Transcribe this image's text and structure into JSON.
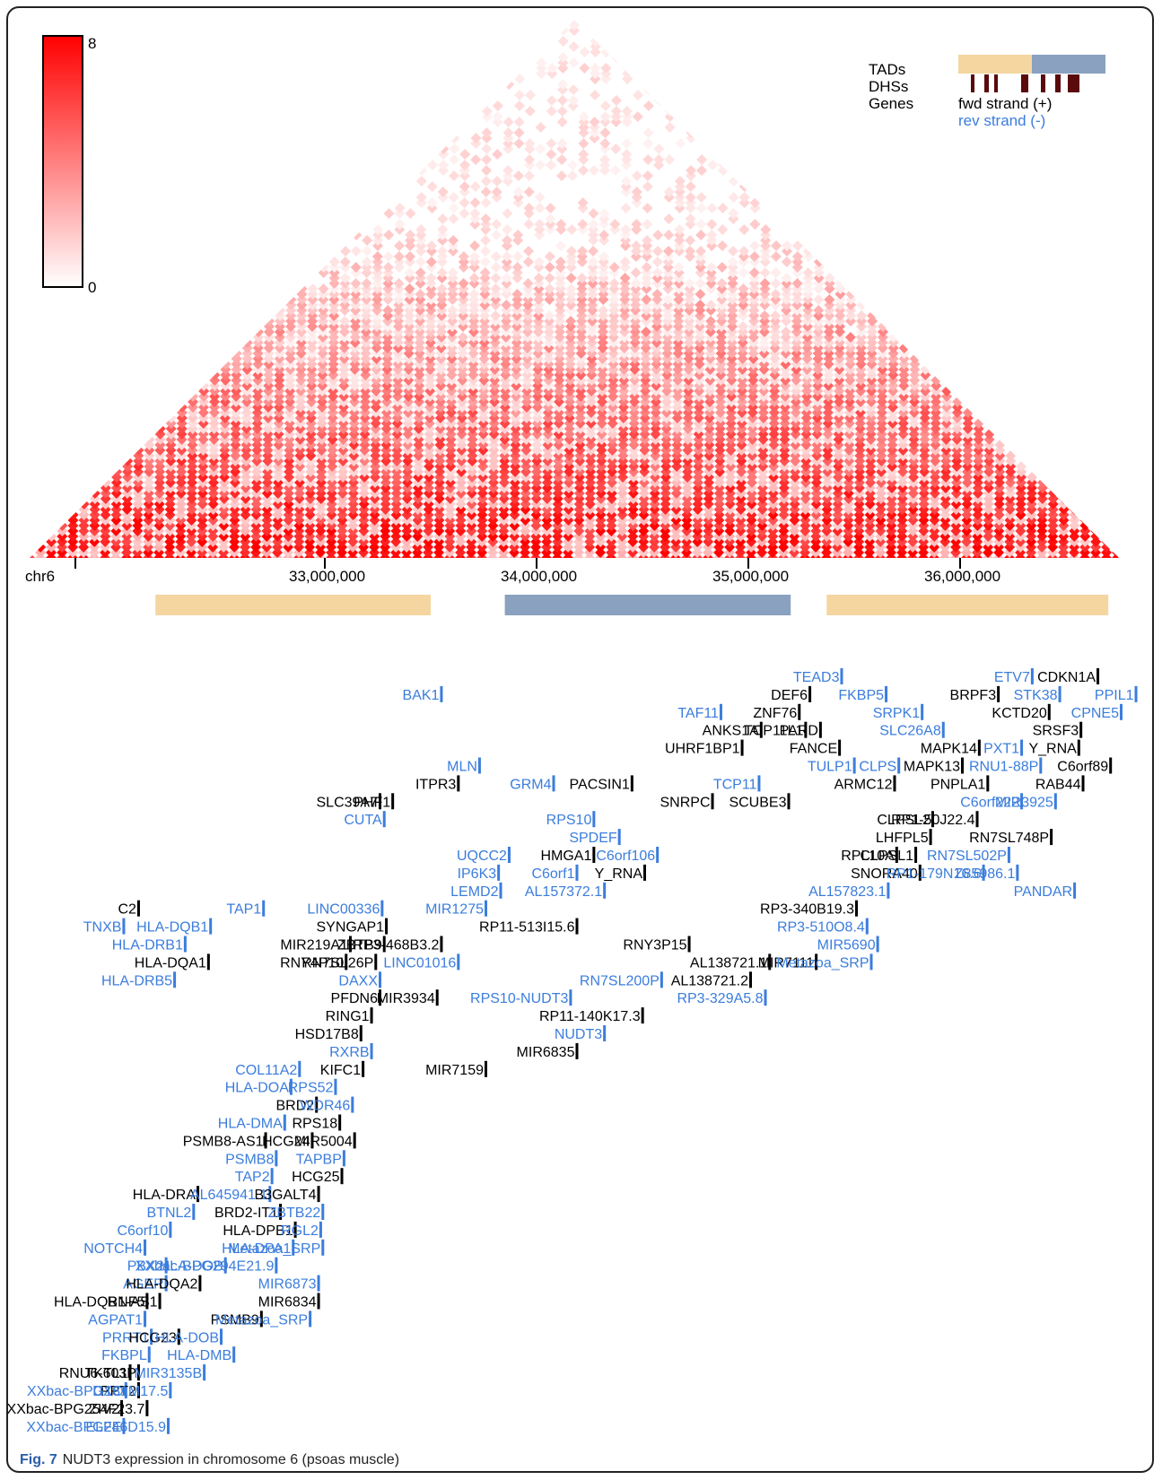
{
  "figure": {
    "label": "Fig. 7",
    "text": "NUDT3 expression in chromosome 6 (psoas muscle)"
  },
  "colors": {
    "heat_max": "#ff0000",
    "heat_min": "#ffffff",
    "tad_a": "#f5d6a0",
    "tad_b": "#8aa1bf",
    "dhs": "#5a0a0a",
    "fwd_gene": "#000000",
    "rev_gene": "#3b7ddd"
  },
  "legend": {
    "tads": "TADs",
    "dhss": "DHSs",
    "genes": "Genes",
    "fwd": "fwd strand (+)",
    "rev": "rev strand (-)"
  },
  "chart_data": {
    "type": "heatmap",
    "title": "",
    "chromosome": "chr6",
    "colorbar": {
      "min": 0,
      "max": 8
    },
    "x_range": [
      32200000,
      36700000
    ],
    "x_ticks": [
      {
        "value": 33000000,
        "label": "33,000,000"
      },
      {
        "value": 34000000,
        "label": "34,000,000"
      },
      {
        "value": 35000000,
        "label": "35,000,000"
      },
      {
        "value": 36000000,
        "label": "36,000,000"
      }
    ],
    "tads": [
      {
        "start": 32200000,
        "end": 33500000,
        "type": "a"
      },
      {
        "start": 33850000,
        "end": 35200000,
        "type": "b"
      },
      {
        "start": 35370000,
        "end": 36700000,
        "type": "a"
      }
    ],
    "genes": [
      {
        "name": "TEAD3",
        "strand": "-",
        "row": 0,
        "x": 35430000
      },
      {
        "name": "ETV7",
        "strand": "-",
        "row": 0,
        "x": 36330000
      },
      {
        "name": "CDKN1A",
        "strand": "+",
        "row": 0,
        "x": 36640000
      },
      {
        "name": "BAK1",
        "strand": "-",
        "row": 1,
        "x": 33540000
      },
      {
        "name": "DEF6",
        "strand": "+",
        "row": 1,
        "x": 35280000
      },
      {
        "name": "FKBP5",
        "strand": "-",
        "row": 1,
        "x": 35640000
      },
      {
        "name": "BRPF3",
        "strand": "+",
        "row": 1,
        "x": 36170000
      },
      {
        "name": "STK38",
        "strand": "-",
        "row": 1,
        "x": 36460000
      },
      {
        "name": "PPIL1",
        "strand": "-",
        "row": 1,
        "x": 36820000
      },
      {
        "name": "TAF11",
        "strand": "-",
        "row": 2,
        "x": 34860000
      },
      {
        "name": "ZNF76",
        "strand": "+",
        "row": 2,
        "x": 35230000
      },
      {
        "name": "SRPK1",
        "strand": "-",
        "row": 2,
        "x": 35810000
      },
      {
        "name": "KCTD20",
        "strand": "+",
        "row": 2,
        "x": 36410000
      },
      {
        "name": "CPNE5",
        "strand": "-",
        "row": 2,
        "x": 36750000
      },
      {
        "name": "ANKS1A",
        "strand": "+",
        "row": 3,
        "x": 35050000
      },
      {
        "name": "TCP11L1",
        "strand": "+",
        "row": 3,
        "x": 35260000
      },
      {
        "name": "PARD",
        "strand": "+",
        "row": 3,
        "x": 35330000
      },
      {
        "name": "SLC26A8",
        "strand": "-",
        "row": 3,
        "x": 35910000
      },
      {
        "name": "SRSF3",
        "strand": "+",
        "row": 3,
        "x": 36560000
      },
      {
        "name": "UHRF1BP1",
        "strand": "+",
        "row": 4,
        "x": 34960000
      },
      {
        "name": "FANCE",
        "strand": "+",
        "row": 4,
        "x": 35420000
      },
      {
        "name": "MAPK14",
        "strand": "+",
        "row": 4,
        "x": 36080000
      },
      {
        "name": "PXT1",
        "strand": "-",
        "row": 4,
        "x": 36280000
      },
      {
        "name": "Y_RNA",
        "strand": "+",
        "row": 4,
        "x": 36550000
      },
      {
        "name": "MLN",
        "strand": "-",
        "row": 5,
        "x": 33720000
      },
      {
        "name": "TULP1",
        "strand": "-",
        "row": 5,
        "x": 35490000
      },
      {
        "name": "CLPS",
        "strand": "-",
        "row": 5,
        "x": 35700000
      },
      {
        "name": "MAPK13",
        "strand": "+",
        "row": 5,
        "x": 36000000
      },
      {
        "name": "RNU1-88P",
        "strand": "-",
        "row": 5,
        "x": 36370000
      },
      {
        "name": "C6orf89",
        "strand": "+",
        "row": 5,
        "x": 36700000
      },
      {
        "name": "ITPR3",
        "strand": "+",
        "row": 6,
        "x": 33620000
      },
      {
        "name": "GRM4",
        "strand": "-",
        "row": 6,
        "x": 34070000
      },
      {
        "name": "PACSIN1",
        "strand": "+",
        "row": 6,
        "x": 34440000
      },
      {
        "name": "TCP11",
        "strand": "-",
        "row": 6,
        "x": 35040000
      },
      {
        "name": "ARMC12",
        "strand": "+",
        "row": 6,
        "x": 35680000
      },
      {
        "name": "PNPLA1",
        "strand": "+",
        "row": 6,
        "x": 36120000
      },
      {
        "name": "RAB44",
        "strand": "+",
        "row": 6,
        "x": 36570000
      },
      {
        "name": "SLC39A7",
        "strand": "+",
        "row": 7,
        "x": 33250000
      },
      {
        "name": "PHF1",
        "strand": "+",
        "row": 7,
        "x": 33310000
      },
      {
        "name": "SNRPC",
        "strand": "+",
        "row": 7,
        "x": 34820000
      },
      {
        "name": "SCUBE3",
        "strand": "+",
        "row": 7,
        "x": 35180000
      },
      {
        "name": "C6orf222",
        "strand": "-",
        "row": 7,
        "x": 36280000
      },
      {
        "name": "MIR3925",
        "strand": "-",
        "row": 7,
        "x": 36440000
      },
      {
        "name": "CUTA",
        "strand": "-",
        "row": 8,
        "x": 33270000
      },
      {
        "name": "RPS10",
        "strand": "-",
        "row": 8,
        "x": 34260000
      },
      {
        "name": "CLPSL2",
        "strand": "+",
        "row": 8,
        "x": 35860000
      },
      {
        "name": "RP1-50J22.4",
        "strand": "+",
        "row": 8,
        "x": 36070000
      },
      {
        "name": "SPDEF",
        "strand": "-",
        "row": 9,
        "x": 34380000
      },
      {
        "name": "LHFPL5",
        "strand": "+",
        "row": 9,
        "x": 35850000
      },
      {
        "name": "RN7SL748P",
        "strand": "+",
        "row": 9,
        "x": 36420000
      },
      {
        "name": "UQCC2",
        "strand": "-",
        "row": 10,
        "x": 33860000
      },
      {
        "name": "HMGA1",
        "strand": "+",
        "row": 10,
        "x": 34260000
      },
      {
        "name": "C6orf106",
        "strand": "-",
        "row": 10,
        "x": 34560000
      },
      {
        "name": "RPL10A",
        "strand": "+",
        "row": 10,
        "x": 35690000
      },
      {
        "name": "CLPSL1",
        "strand": "+",
        "row": 10,
        "x": 35780000
      },
      {
        "name": "RN7SL502P",
        "strand": "-",
        "row": 10,
        "x": 36220000
      },
      {
        "name": "IP6K3",
        "strand": "-",
        "row": 11,
        "x": 33810000
      },
      {
        "name": "C6orf1",
        "strand": "-",
        "row": 11,
        "x": 34180000
      },
      {
        "name": "Y_RNA",
        "strand": "+",
        "row": 11,
        "x": 34500000
      },
      {
        "name": "SNORA40",
        "strand": "+",
        "row": 11,
        "x": 35800000
      },
      {
        "name": "RP1-179N16.6",
        "strand": "-",
        "row": 11,
        "x": 36100000
      },
      {
        "name": "Z85986.1",
        "strand": "-",
        "row": 11,
        "x": 36260000
      },
      {
        "name": "LEMD2",
        "strand": "-",
        "row": 12,
        "x": 33820000
      },
      {
        "name": "AL157372.1",
        "strand": "-",
        "row": 12,
        "x": 34310000
      },
      {
        "name": "AL157823.1",
        "strand": "-",
        "row": 12,
        "x": 35650000
      },
      {
        "name": "PANDAR",
        "strand": "-",
        "row": 12,
        "x": 36530000
      },
      {
        "name": "C2",
        "strand": "+",
        "row": 13,
        "x": 32110000
      },
      {
        "name": "TAP1",
        "strand": "-",
        "row": 13,
        "x": 32700000
      },
      {
        "name": "LINC00336",
        "strand": "-",
        "row": 13,
        "x": 33260000
      },
      {
        "name": "MIR1275",
        "strand": "-",
        "row": 13,
        "x": 33750000
      },
      {
        "name": "RP3-340B19.3",
        "strand": "+",
        "row": 13,
        "x": 35500000
      },
      {
        "name": "TNXB",
        "strand": "-",
        "row": 14,
        "x": 32040000
      },
      {
        "name": "HLA-DQB1",
        "strand": "-",
        "row": 14,
        "x": 32450000
      },
      {
        "name": "SYNGAP1",
        "strand": "+",
        "row": 14,
        "x": 33280000
      },
      {
        "name": "RP11-513I15.6",
        "strand": "+",
        "row": 14,
        "x": 34180000
      },
      {
        "name": "RP3-510O8.4",
        "strand": "-",
        "row": 14,
        "x": 35550000
      },
      {
        "name": "HLA-DRB1",
        "strand": "-",
        "row": 15,
        "x": 32330000
      },
      {
        "name": "MIR219A1",
        "strand": "+",
        "row": 15,
        "x": 33110000
      },
      {
        "name": "ZBTB9",
        "strand": "+",
        "row": 15,
        "x": 33270000
      },
      {
        "name": "RP3-468B3.2",
        "strand": "+",
        "row": 15,
        "x": 33540000
      },
      {
        "name": "RNY3P15",
        "strand": "+",
        "row": 15,
        "x": 34710000
      },
      {
        "name": "MIR5690",
        "strand": "-",
        "row": 15,
        "x": 35600000
      },
      {
        "name": "HLA-DQA1",
        "strand": "+",
        "row": 16,
        "x": 32440000
      },
      {
        "name": "RNY4P10",
        "strand": "+",
        "row": 16,
        "x": 33090000
      },
      {
        "name": "RN7SL26P",
        "strand": "+",
        "row": 16,
        "x": 33230000
      },
      {
        "name": "LINC01016",
        "strand": "-",
        "row": 16,
        "x": 33620000
      },
      {
        "name": "AL138721.1",
        "strand": "+",
        "row": 16,
        "x": 35090000
      },
      {
        "name": "MIR7111",
        "strand": "+",
        "row": 16,
        "x": 35310000
      },
      {
        "name": "Metazoa_SRP",
        "strand": "-",
        "row": 16,
        "x": 35570000
      },
      {
        "name": "HLA-DRB5",
        "strand": "-",
        "row": 17,
        "x": 32280000
      },
      {
        "name": "DAXX",
        "strand": "-",
        "row": 17,
        "x": 33250000
      },
      {
        "name": "RN7SL200P",
        "strand": "-",
        "row": 17,
        "x": 34580000
      },
      {
        "name": "AL138721.2",
        "strand": "+",
        "row": 17,
        "x": 35000000
      },
      {
        "name": "PFDN6",
        "strand": "+",
        "row": 18,
        "x": 33250000
      },
      {
        "name": "MIR3934",
        "strand": "+",
        "row": 18,
        "x": 33520000
      },
      {
        "name": "RPS10-NUDT3",
        "strand": "-",
        "row": 18,
        "x": 34150000
      },
      {
        "name": "RP3-329A5.8",
        "strand": "-",
        "row": 18,
        "x": 35070000
      },
      {
        "name": "RING1",
        "strand": "+",
        "row": 19,
        "x": 33210000
      },
      {
        "name": "RP11-140K17.3",
        "strand": "+",
        "row": 19,
        "x": 34490000
      },
      {
        "name": "HSD17B8",
        "strand": "+",
        "row": 20,
        "x": 33160000
      },
      {
        "name": "NUDT3",
        "strand": "-",
        "row": 20,
        "x": 34310000
      },
      {
        "name": "RXRB",
        "strand": "-",
        "row": 21,
        "x": 33210000
      },
      {
        "name": "MIR6835",
        "strand": "+",
        "row": 21,
        "x": 34180000
      },
      {
        "name": "COL11A2",
        "strand": "-",
        "row": 22,
        "x": 32870000
      },
      {
        "name": "KIFC1",
        "strand": "+",
        "row": 22,
        "x": 33170000
      },
      {
        "name": "MIR7159",
        "strand": "+",
        "row": 22,
        "x": 33750000
      },
      {
        "name": "HLA-DOA",
        "strand": "-",
        "row": 23,
        "x": 32830000
      },
      {
        "name": "RPS52",
        "strand": "-",
        "row": 23,
        "x": 33040000
      },
      {
        "name": "BRD2",
        "strand": "+",
        "row": 24,
        "x": 32950000
      },
      {
        "name": "WDR46",
        "strand": "-",
        "row": 24,
        "x": 33120000
      },
      {
        "name": "HLA-DMA",
        "strand": "-",
        "row": 25,
        "x": 32800000
      },
      {
        "name": "RPS18",
        "strand": "+",
        "row": 25,
        "x": 33060000
      },
      {
        "name": "PSMB8-AS1",
        "strand": "+",
        "row": 26,
        "x": 32710000
      },
      {
        "name": "HCG24",
        "strand": "+",
        "row": 26,
        "x": 32930000
      },
      {
        "name": "MIR5004",
        "strand": "+",
        "row": 26,
        "x": 33130000
      },
      {
        "name": "PSMB8",
        "strand": "-",
        "row": 27,
        "x": 32760000
      },
      {
        "name": "TAPBP",
        "strand": "-",
        "row": 27,
        "x": 33080000
      },
      {
        "name": "TAP2",
        "strand": "-",
        "row": 28,
        "x": 32740000
      },
      {
        "name": "HCG25",
        "strand": "+",
        "row": 28,
        "x": 33070000
      },
      {
        "name": "HLA-DRA",
        "strand": "+",
        "row": 29,
        "x": 32390000
      },
      {
        "name": "AL645941.1",
        "strand": "-",
        "row": 29,
        "x": 32730000
      },
      {
        "name": "B3GALT4",
        "strand": "+",
        "row": 29,
        "x": 32960000
      },
      {
        "name": "BTNL2",
        "strand": "-",
        "row": 30,
        "x": 32370000
      },
      {
        "name": "BRD2-IT1",
        "strand": "+",
        "row": 30,
        "x": 32780000
      },
      {
        "name": "ZBTB22",
        "strand": "-",
        "row": 30,
        "x": 32980000
      },
      {
        "name": "C6orf10",
        "strand": "-",
        "row": 31,
        "x": 32260000
      },
      {
        "name": "HLA-DPB1",
        "strand": "+",
        "row": 31,
        "x": 32850000
      },
      {
        "name": "RGL2",
        "strand": "-",
        "row": 31,
        "x": 32970000
      },
      {
        "name": "NOTCH4",
        "strand": "-",
        "row": 32,
        "x": 32140000
      },
      {
        "name": "HLA-DPA1",
        "strand": "-",
        "row": 32,
        "x": 32840000
      },
      {
        "name": "Metazoa_SRP",
        "strand": "-",
        "row": 32,
        "x": 32980000
      },
      {
        "name": "PBX2",
        "strand": "-",
        "row": 33,
        "x": 32240000
      },
      {
        "name": "HLA-DOB",
        "strand": "-",
        "row": 33,
        "x": 32520000
      },
      {
        "name": "XXbac-BPG294E21.9",
        "strand": "-",
        "row": 33,
        "x": 32760000
      },
      {
        "name": "AGER",
        "strand": "-",
        "row": 34,
        "x": 32240000
      },
      {
        "name": "HLA-DQA2",
        "strand": "+",
        "row": 34,
        "x": 32400000
      },
      {
        "name": "MIR6873",
        "strand": "-",
        "row": 34,
        "x": 32960000
      },
      {
        "name": "RNF5",
        "strand": "+",
        "row": 35,
        "x": 32150000
      },
      {
        "name": "HLA-DQB1-AS1",
        "strand": "+",
        "row": 35,
        "x": 32210000
      },
      {
        "name": "MIR6834",
        "strand": "+",
        "row": 35,
        "x": 32960000
      },
      {
        "name": "AGPAT1",
        "strand": "-",
        "row": 36,
        "x": 32140000
      },
      {
        "name": "PSMB9",
        "strand": "+",
        "row": 36,
        "x": 32690000
      },
      {
        "name": "Metazoa_SRP",
        "strand": "-",
        "row": 36,
        "x": 32920000
      },
      {
        "name": "PRRT1",
        "strand": "-",
        "row": 37,
        "x": 32170000
      },
      {
        "name": "HCG23",
        "strand": "+",
        "row": 37,
        "x": 32300000
      },
      {
        "name": "HLA-DOB",
        "strand": "-",
        "row": 37,
        "x": 32500000
      },
      {
        "name": "FKBPL",
        "strand": "-",
        "row": 38,
        "x": 32160000
      },
      {
        "name": "HLA-DMB",
        "strand": "-",
        "row": 38,
        "x": 32560000
      },
      {
        "name": "TKTL1",
        "strand": "+",
        "row": 39,
        "x": 32070000
      },
      {
        "name": "RNU6-603P",
        "strand": "+",
        "row": 39,
        "x": 32110000
      },
      {
        "name": "MIR3135B",
        "strand": "-",
        "row": 39,
        "x": 32420000
      },
      {
        "name": "DXO",
        "strand": "-",
        "row": 40,
        "x": 32050000
      },
      {
        "name": "PPT2",
        "strand": "+",
        "row": 40,
        "x": 32110000
      },
      {
        "name": "XXbac-BPG181M17.5",
        "strand": "-",
        "row": 40,
        "x": 32260000
      },
      {
        "name": "ZIV2",
        "strand": "+",
        "row": 41,
        "x": 32030000
      },
      {
        "name": "XXbac-BPG254F23.7",
        "strand": "+",
        "row": 41,
        "x": 32150000
      },
      {
        "name": "ELFE",
        "strand": "-",
        "row": 42,
        "x": 32040000
      },
      {
        "name": "XXbac-BPG246D15.9",
        "strand": "-",
        "row": 42,
        "x": 32250000
      }
    ]
  }
}
